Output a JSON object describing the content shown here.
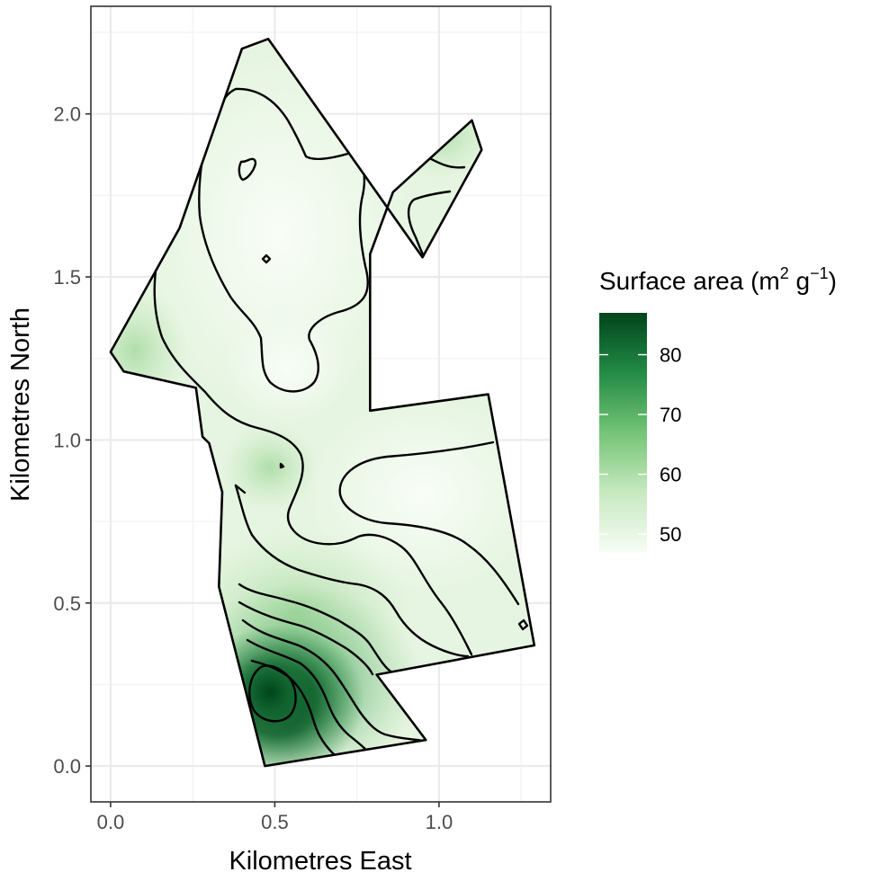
{
  "xlabel": "Kilometres East",
  "ylabel": "Kilometres North",
  "legend": {
    "title_main": "Surface area (m",
    "title_sup1": "2",
    "title_mid": " g",
    "title_sup2": "−1",
    "title_end": ")",
    "ticks": [
      {
        "value": 50,
        "label": "50"
      },
      {
        "value": 60,
        "label": "60"
      },
      {
        "value": 70,
        "label": "70"
      },
      {
        "value": 80,
        "label": "80"
      }
    ],
    "range": [
      47,
      87
    ],
    "colors": [
      "#f7fcf5",
      "#c7e9c0",
      "#74c476",
      "#238b45",
      "#00441b"
    ]
  },
  "chart_data": {
    "type": "map",
    "xlabel": "Kilometres East",
    "ylabel": "Kilometres North",
    "xlim": [
      -0.06,
      1.34
    ],
    "ylim": [
      -0.11,
      2.33
    ],
    "x_ticks": [
      {
        "value": 0.0,
        "label": "0.0"
      },
      {
        "value": 0.5,
        "label": "0.5"
      },
      {
        "value": 1.0,
        "label": "1.0"
      }
    ],
    "y_ticks": [
      {
        "value": 0.0,
        "label": "0.0"
      },
      {
        "value": 0.5,
        "label": "0.5"
      },
      {
        "value": 1.0,
        "label": "1.0"
      },
      {
        "value": 1.5,
        "label": "1.5"
      },
      {
        "value": 2.0,
        "label": "2.0"
      }
    ],
    "minor_x": [
      0.25,
      0.75,
      1.25
    ],
    "minor_y": [
      0.25,
      0.75,
      1.25,
      1.75,
      2.25
    ],
    "boundary": [
      [
        0.47,
        0.0
      ],
      [
        0.96,
        0.08
      ],
      [
        0.81,
        0.28
      ],
      [
        1.29,
        0.37
      ],
      [
        1.15,
        1.14
      ],
      [
        0.79,
        1.09
      ],
      [
        0.79,
        1.57
      ],
      [
        0.86,
        1.76
      ],
      [
        1.1,
        1.98
      ],
      [
        1.13,
        1.89
      ],
      [
        0.95,
        1.56
      ],
      [
        0.48,
        2.23
      ],
      [
        0.4,
        2.2
      ],
      [
        0.21,
        1.65
      ],
      [
        0.0,
        1.27
      ],
      [
        0.04,
        1.21
      ],
      [
        0.26,
        1.16
      ],
      [
        0.28,
        1.01
      ],
      [
        0.3,
        0.99
      ],
      [
        0.34,
        0.84
      ],
      [
        0.33,
        0.55
      ]
    ],
    "grid": true,
    "legend_position": "right"
  }
}
